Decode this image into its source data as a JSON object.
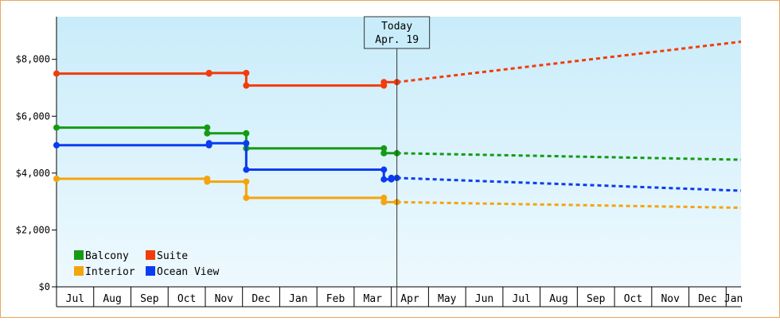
{
  "chart_data": {
    "type": "line",
    "title": "",
    "xlabel": "",
    "ylabel": "",
    "x_ticks": [
      "Jul",
      "Aug",
      "Sep",
      "Oct",
      "Nov",
      "Dec",
      "Jan",
      "Feb",
      "Mar",
      "Apr",
      "May",
      "Jun",
      "Jul",
      "Aug",
      "Sep",
      "Oct",
      "Nov",
      "Dec",
      "Jan"
    ],
    "y_ticks": [
      "$0",
      "$2,000",
      "$4,000",
      "$6,000",
      "$8,000"
    ],
    "ylim": [
      0,
      9500
    ],
    "x_range_months": [
      0,
      18.4
    ],
    "grid": false,
    "legend_position": "bottom-left",
    "today_marker": {
      "label": "Today",
      "date": "Apr. 19",
      "x": 9.15
    },
    "series": [
      {
        "name": "Balcony",
        "color": "#149b14",
        "history": [
          [
            0,
            5600
          ],
          [
            4.05,
            5600
          ],
          [
            4.05,
            5400
          ],
          [
            5.1,
            5400
          ],
          [
            5.1,
            4870
          ],
          [
            8.8,
            4870
          ],
          [
            8.8,
            4700
          ],
          [
            9.15,
            4700
          ]
        ],
        "forecast": [
          [
            9.15,
            4700
          ],
          [
            18.4,
            4470
          ]
        ]
      },
      {
        "name": "Suite",
        "color": "#f23c0c",
        "history": [
          [
            0,
            7500
          ],
          [
            4.1,
            7500
          ],
          [
            4.1,
            7520
          ],
          [
            5.1,
            7520
          ],
          [
            5.1,
            7080
          ],
          [
            8.8,
            7080
          ],
          [
            8.8,
            7200
          ],
          [
            9.15,
            7200
          ]
        ],
        "forecast": [
          [
            9.15,
            7200
          ],
          [
            18.4,
            8620
          ]
        ]
      },
      {
        "name": "Interior",
        "color": "#f4a40c",
        "history": [
          [
            0,
            3800
          ],
          [
            4.05,
            3800
          ],
          [
            4.05,
            3700
          ],
          [
            5.1,
            3700
          ],
          [
            5.1,
            3130
          ],
          [
            8.8,
            3130
          ],
          [
            8.8,
            2980
          ],
          [
            9.15,
            2980
          ]
        ],
        "forecast": [
          [
            9.15,
            2980
          ],
          [
            18.4,
            2780
          ]
        ]
      },
      {
        "name": "Ocean View",
        "color": "#0a3cf0",
        "history": [
          [
            0,
            4980
          ],
          [
            4.1,
            4980
          ],
          [
            4.1,
            5050
          ],
          [
            5.1,
            5050
          ],
          [
            5.1,
            4120
          ],
          [
            8.8,
            4120
          ],
          [
            8.8,
            3780
          ],
          [
            9.0,
            3780
          ],
          [
            9.0,
            3830
          ],
          [
            9.15,
            3830
          ]
        ],
        "forecast": [
          [
            9.15,
            3830
          ],
          [
            18.4,
            3380
          ]
        ]
      }
    ]
  }
}
